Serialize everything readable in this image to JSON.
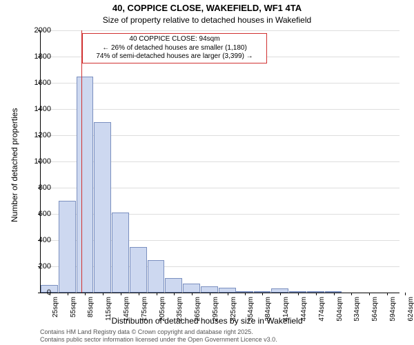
{
  "title": "40, COPPICE CLOSE, WAKEFIELD, WF1 4TA",
  "subtitle": "Size of property relative to detached houses in Wakefield",
  "ylabel": "Number of detached properties",
  "xlabel": "Distribution of detached houses by size in Wakefield",
  "footer1": "Contains HM Land Registry data © Crown copyright and database right 2025.",
  "footer2": "Contains public sector information licensed under the Open Government Licence v3.0.",
  "chart": {
    "type": "histogram",
    "ylim": [
      0,
      2000
    ],
    "ytick_step": 200,
    "yticks": [
      0,
      200,
      400,
      600,
      800,
      1000,
      1200,
      1400,
      1600,
      1800,
      2000
    ],
    "xlim": [
      25,
      630
    ],
    "xticks": [
      25,
      55,
      85,
      115,
      145,
      175,
      205,
      235,
      265,
      295,
      325,
      354,
      384,
      414,
      444,
      474,
      504,
      534,
      564,
      594,
      624
    ],
    "xtick_labels": [
      "25sqm",
      "55sqm",
      "85sqm",
      "115sqm",
      "145sqm",
      "175sqm",
      "205sqm",
      "235sqm",
      "265sqm",
      "295sqm",
      "325sqm",
      "354sqm",
      "384sqm",
      "414sqm",
      "444sqm",
      "474sqm",
      "504sqm",
      "534sqm",
      "564sqm",
      "594sqm",
      "624sqm"
    ],
    "background_color": "#ffffff",
    "grid_color": "#dddddd",
    "bar_fill": "#cdd8f0",
    "bar_stroke": "#7a8fbf",
    "bar_width_sqm": 30,
    "bars": [
      {
        "x": 25,
        "count": 60
      },
      {
        "x": 55,
        "count": 700
      },
      {
        "x": 85,
        "count": 1650
      },
      {
        "x": 115,
        "count": 1300
      },
      {
        "x": 145,
        "count": 610
      },
      {
        "x": 175,
        "count": 350
      },
      {
        "x": 205,
        "count": 250
      },
      {
        "x": 235,
        "count": 110
      },
      {
        "x": 265,
        "count": 70
      },
      {
        "x": 295,
        "count": 50
      },
      {
        "x": 325,
        "count": 35
      },
      {
        "x": 354,
        "count": 10
      },
      {
        "x": 384,
        "count": 10
      },
      {
        "x": 414,
        "count": 30
      },
      {
        "x": 444,
        "count": 10
      },
      {
        "x": 474,
        "count": 5
      },
      {
        "x": 504,
        "count": 5
      },
      {
        "x": 534,
        "count": 0
      },
      {
        "x": 564,
        "count": 0
      },
      {
        "x": 594,
        "count": 0
      },
      {
        "x": 624,
        "count": 0
      }
    ],
    "marker": {
      "x": 94,
      "color": "#d03030"
    },
    "annotation": {
      "border_color": "#d03030",
      "line1": "40 COPPICE CLOSE: 94sqm",
      "line2": "← 26% of detached houses are smaller (1,180)",
      "line3": "74% of semi-detached houses are larger (3,399) →"
    }
  }
}
